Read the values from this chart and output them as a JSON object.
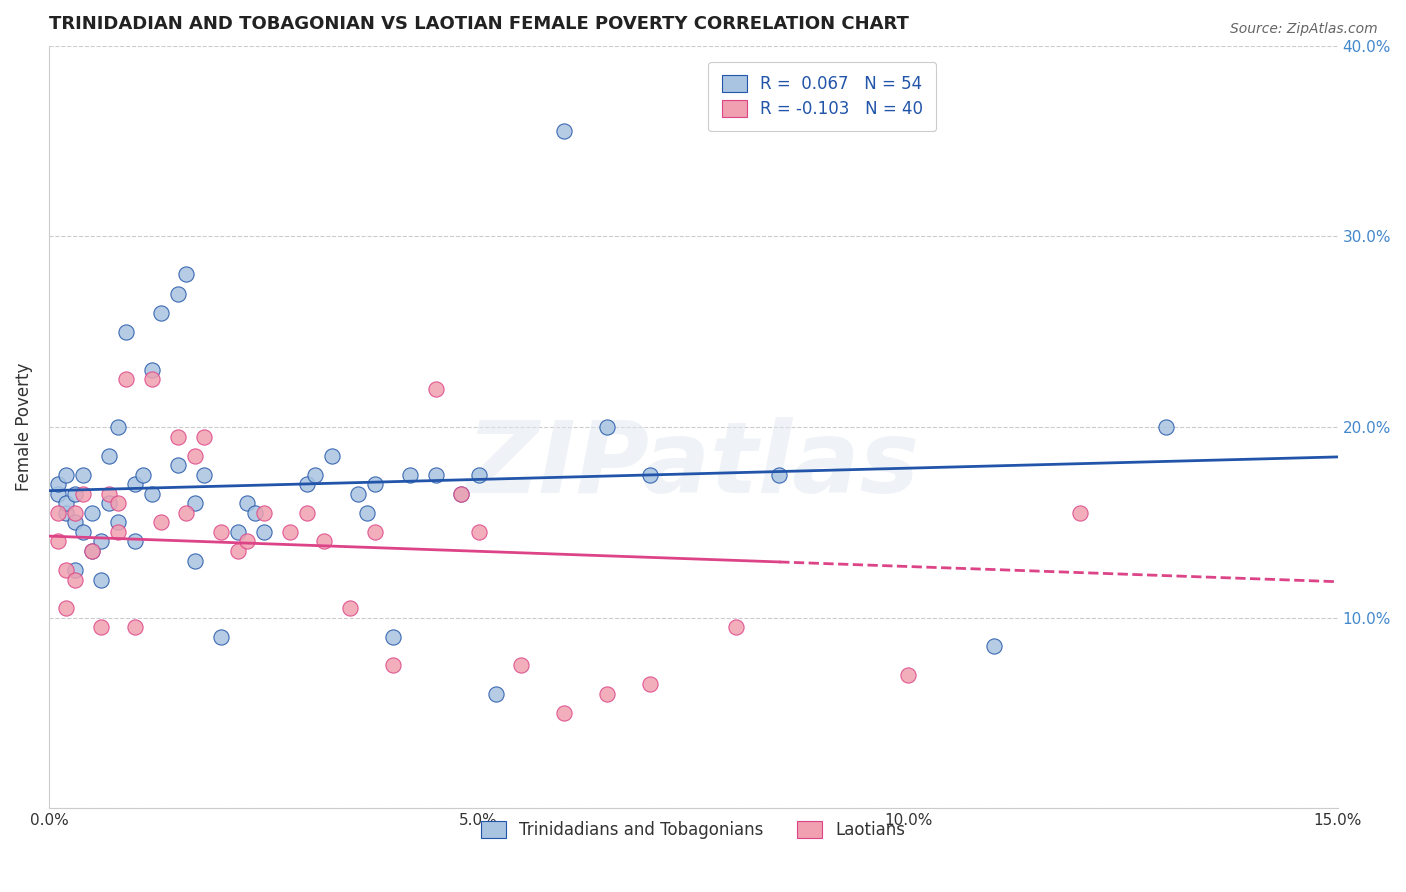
{
  "title": "TRINIDADIAN AND TOBAGONIAN VS LAOTIAN FEMALE POVERTY CORRELATION CHART",
  "source": "Source: ZipAtlas.com",
  "xlabel_bottom": "",
  "ylabel": "Female Poverty",
  "x_min": 0.0,
  "x_max": 0.15,
  "y_min": 0.0,
  "y_max": 0.4,
  "x_ticks": [
    0.0,
    0.05,
    0.1,
    0.15
  ],
  "x_tick_labels": [
    "0.0%",
    "5.0%",
    "10.0%",
    "15.0%"
  ],
  "y_ticks": [
    0.0,
    0.1,
    0.2,
    0.3,
    0.4
  ],
  "y_tick_labels": [
    "",
    "10.0%",
    "20.0%",
    "30.0%",
    "40.0%"
  ],
  "blue_R": 0.067,
  "blue_N": 54,
  "pink_R": -0.103,
  "pink_N": 40,
  "blue_color": "#a8c4e0",
  "blue_line_color": "#2255aa",
  "pink_color": "#f0a0b0",
  "pink_line_color": "#dd4488",
  "watermark": "ZIPatlas",
  "legend_label_blue": "Trinidadians and Tobagonians",
  "legend_label_pink": "Laotians",
  "blue_x": [
    0.001,
    0.001,
    0.002,
    0.002,
    0.002,
    0.003,
    0.003,
    0.003,
    0.004,
    0.004,
    0.005,
    0.005,
    0.006,
    0.006,
    0.007,
    0.007,
    0.008,
    0.008,
    0.009,
    0.01,
    0.01,
    0.011,
    0.012,
    0.012,
    0.013,
    0.015,
    0.015,
    0.016,
    0.017,
    0.017,
    0.018,
    0.02,
    0.022,
    0.023,
    0.024,
    0.025,
    0.03,
    0.031,
    0.033,
    0.036,
    0.037,
    0.038,
    0.04,
    0.042,
    0.045,
    0.048,
    0.05,
    0.052,
    0.06,
    0.065,
    0.07,
    0.085,
    0.11,
    0.13
  ],
  "blue_y": [
    0.165,
    0.17,
    0.155,
    0.16,
    0.175,
    0.125,
    0.15,
    0.165,
    0.145,
    0.175,
    0.135,
    0.155,
    0.12,
    0.14,
    0.16,
    0.185,
    0.15,
    0.2,
    0.25,
    0.14,
    0.17,
    0.175,
    0.165,
    0.23,
    0.26,
    0.18,
    0.27,
    0.28,
    0.13,
    0.16,
    0.175,
    0.09,
    0.145,
    0.16,
    0.155,
    0.145,
    0.17,
    0.175,
    0.185,
    0.165,
    0.155,
    0.17,
    0.09,
    0.175,
    0.175,
    0.165,
    0.175,
    0.06,
    0.355,
    0.2,
    0.175,
    0.175,
    0.085,
    0.2
  ],
  "pink_x": [
    0.001,
    0.001,
    0.002,
    0.002,
    0.003,
    0.003,
    0.004,
    0.005,
    0.006,
    0.007,
    0.008,
    0.008,
    0.009,
    0.01,
    0.012,
    0.013,
    0.015,
    0.016,
    0.017,
    0.018,
    0.02,
    0.022,
    0.023,
    0.025,
    0.028,
    0.03,
    0.032,
    0.035,
    0.038,
    0.04,
    0.045,
    0.048,
    0.05,
    0.055,
    0.06,
    0.065,
    0.07,
    0.08,
    0.1,
    0.12
  ],
  "pink_y": [
    0.14,
    0.155,
    0.105,
    0.125,
    0.12,
    0.155,
    0.165,
    0.135,
    0.095,
    0.165,
    0.145,
    0.16,
    0.225,
    0.095,
    0.225,
    0.15,
    0.195,
    0.155,
    0.185,
    0.195,
    0.145,
    0.135,
    0.14,
    0.155,
    0.145,
    0.155,
    0.14,
    0.105,
    0.145,
    0.075,
    0.22,
    0.165,
    0.145,
    0.075,
    0.05,
    0.06,
    0.065,
    0.095,
    0.07,
    0.155
  ]
}
